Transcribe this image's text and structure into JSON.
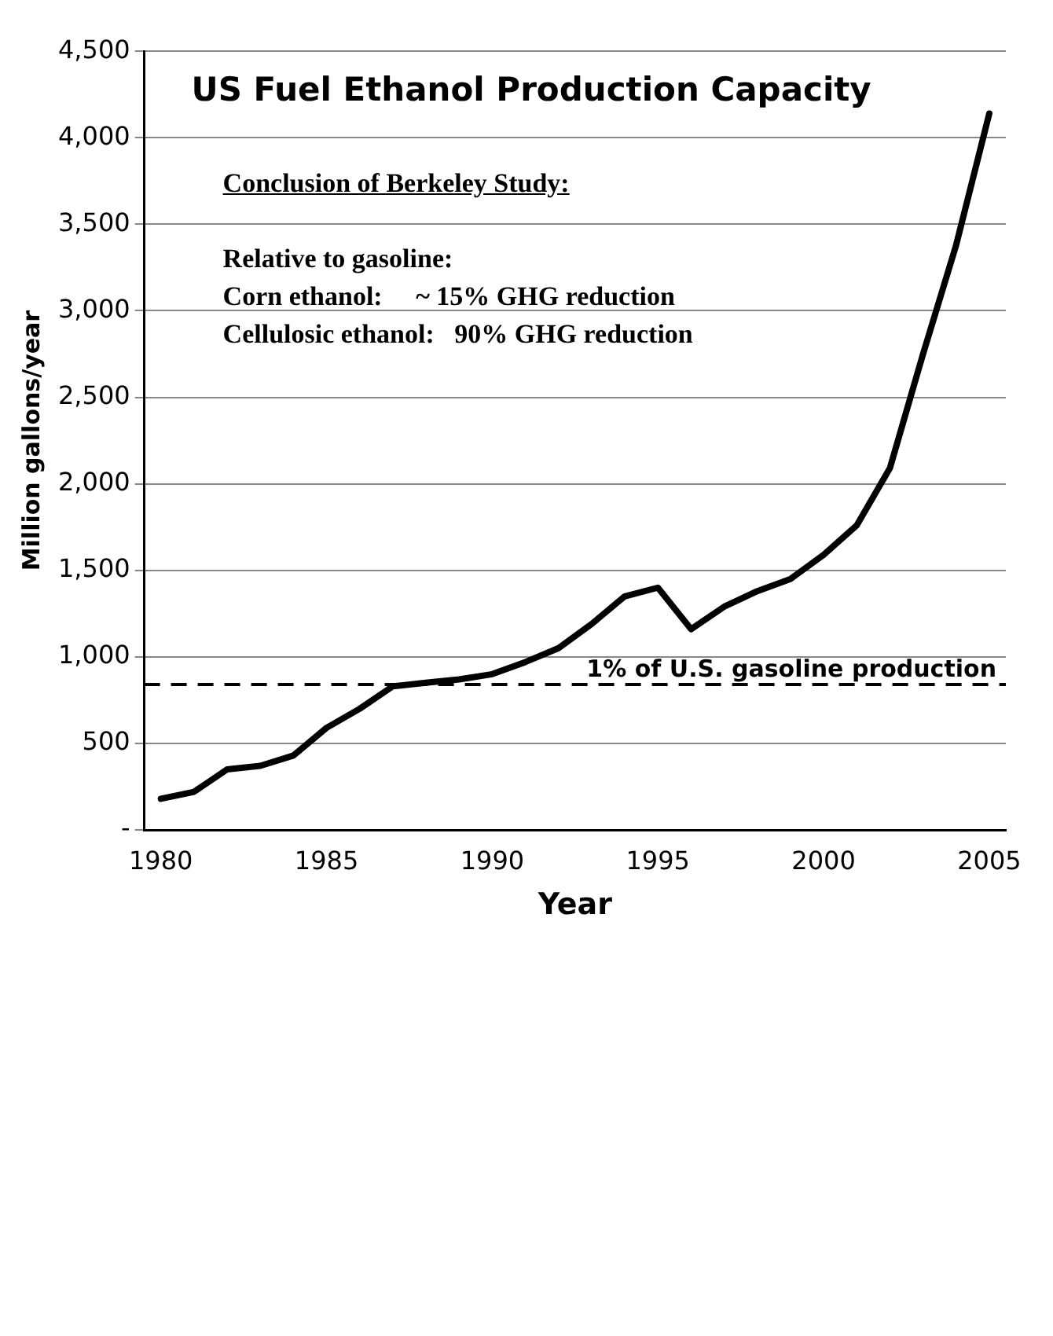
{
  "chart_data": {
    "type": "line",
    "title": "US Fuel Ethanol Production Capacity",
    "xlabel": "Year",
    "ylabel": "Million gallons/year",
    "x": [
      1980,
      1981,
      1982,
      1983,
      1984,
      1985,
      1986,
      1987,
      1988,
      1989,
      1990,
      1991,
      1992,
      1993,
      1994,
      1995,
      1996,
      1997,
      1998,
      1999,
      2000,
      2001,
      2002,
      2003,
      2004,
      2005
    ],
    "series": [
      {
        "color": "#000000",
        "values": [
          180,
          220,
          350,
          370,
          430,
          590,
          700,
          830,
          850,
          870,
          900,
          970,
          1050,
          1190,
          1350,
          1400,
          1160,
          1290,
          1380,
          1450,
          1590,
          1760,
          2090,
          2750,
          3380,
          4140
        ]
      }
    ],
    "xlim": [
      1979.5,
      2005.5
    ],
    "xticks": [
      1980,
      1985,
      1990,
      1995,
      2000,
      2005
    ],
    "ylim": [
      0,
      4500
    ],
    "yticks": [
      {
        "value": 0,
        "label": "-"
      },
      500,
      {
        "value": 1000,
        "label": "1,000"
      },
      {
        "value": 1500,
        "label": "1,500"
      },
      {
        "value": 2000,
        "label": "2,000"
      },
      {
        "value": 2500,
        "label": "2,500"
      },
      {
        "value": 3000,
        "label": "3,000"
      },
      {
        "value": 3500,
        "label": "3,500"
      },
      {
        "value": 4000,
        "label": "4,000"
      },
      {
        "value": 4500,
        "label": "4,500"
      }
    ],
    "grid": "y",
    "marker": "none",
    "line_style": "solid",
    "legend": false,
    "ref_lines": [
      {
        "axis": "y",
        "value": 840,
        "label": "1% of U.S. gasoline production",
        "color": "#000000",
        "line_style": "dashed"
      }
    ],
    "annotations": [
      "Conclusion of Berkeley Study:",
      "Relative to gasoline:",
      "Corn ethanol:     ~ 15% GHG reduction",
      "Cellulosic ethanol:   90% GHG reduction"
    ]
  }
}
